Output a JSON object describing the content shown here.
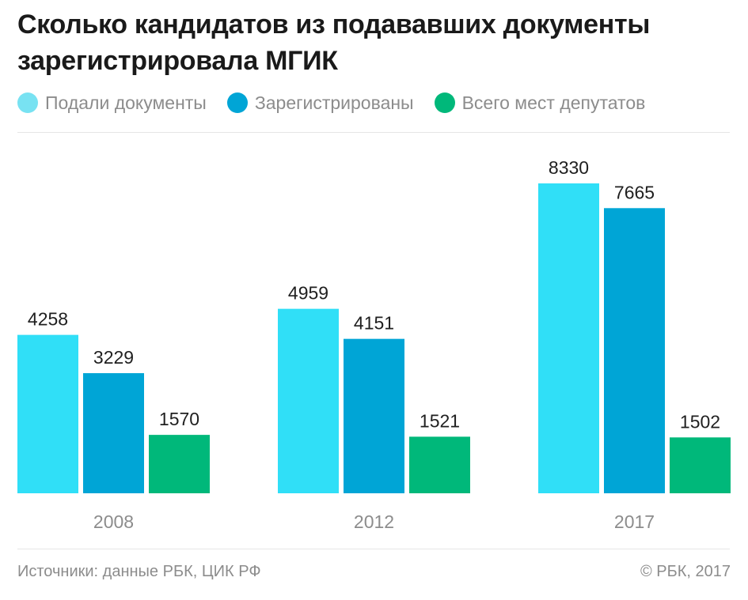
{
  "title_line1": "Сколько кандидатов из подававших документы",
  "title_line2": "зарегистрировала МГИК",
  "source": "Источники: данные РБК, ЦИК РФ",
  "copyright": "© РБК, 2017",
  "colors": {
    "submitted": "#30dff7",
    "registered": "#00a5d6",
    "seats": "#00b87a"
  },
  "chart_data": {
    "type": "bar",
    "categories": [
      "2008",
      "2012",
      "2017"
    ],
    "series": [
      {
        "name": "Подали документы",
        "values": [
          4258,
          4959,
          8330
        ]
      },
      {
        "name": "Зарегистрированы",
        "values": [
          3229,
          4151,
          7665
        ]
      },
      {
        "name": "Всего мест депутатов",
        "values": [
          1570,
          1521,
          1502
        ]
      }
    ],
    "ylim": [
      0,
      8330
    ],
    "grid": false,
    "legend": "top-left"
  }
}
